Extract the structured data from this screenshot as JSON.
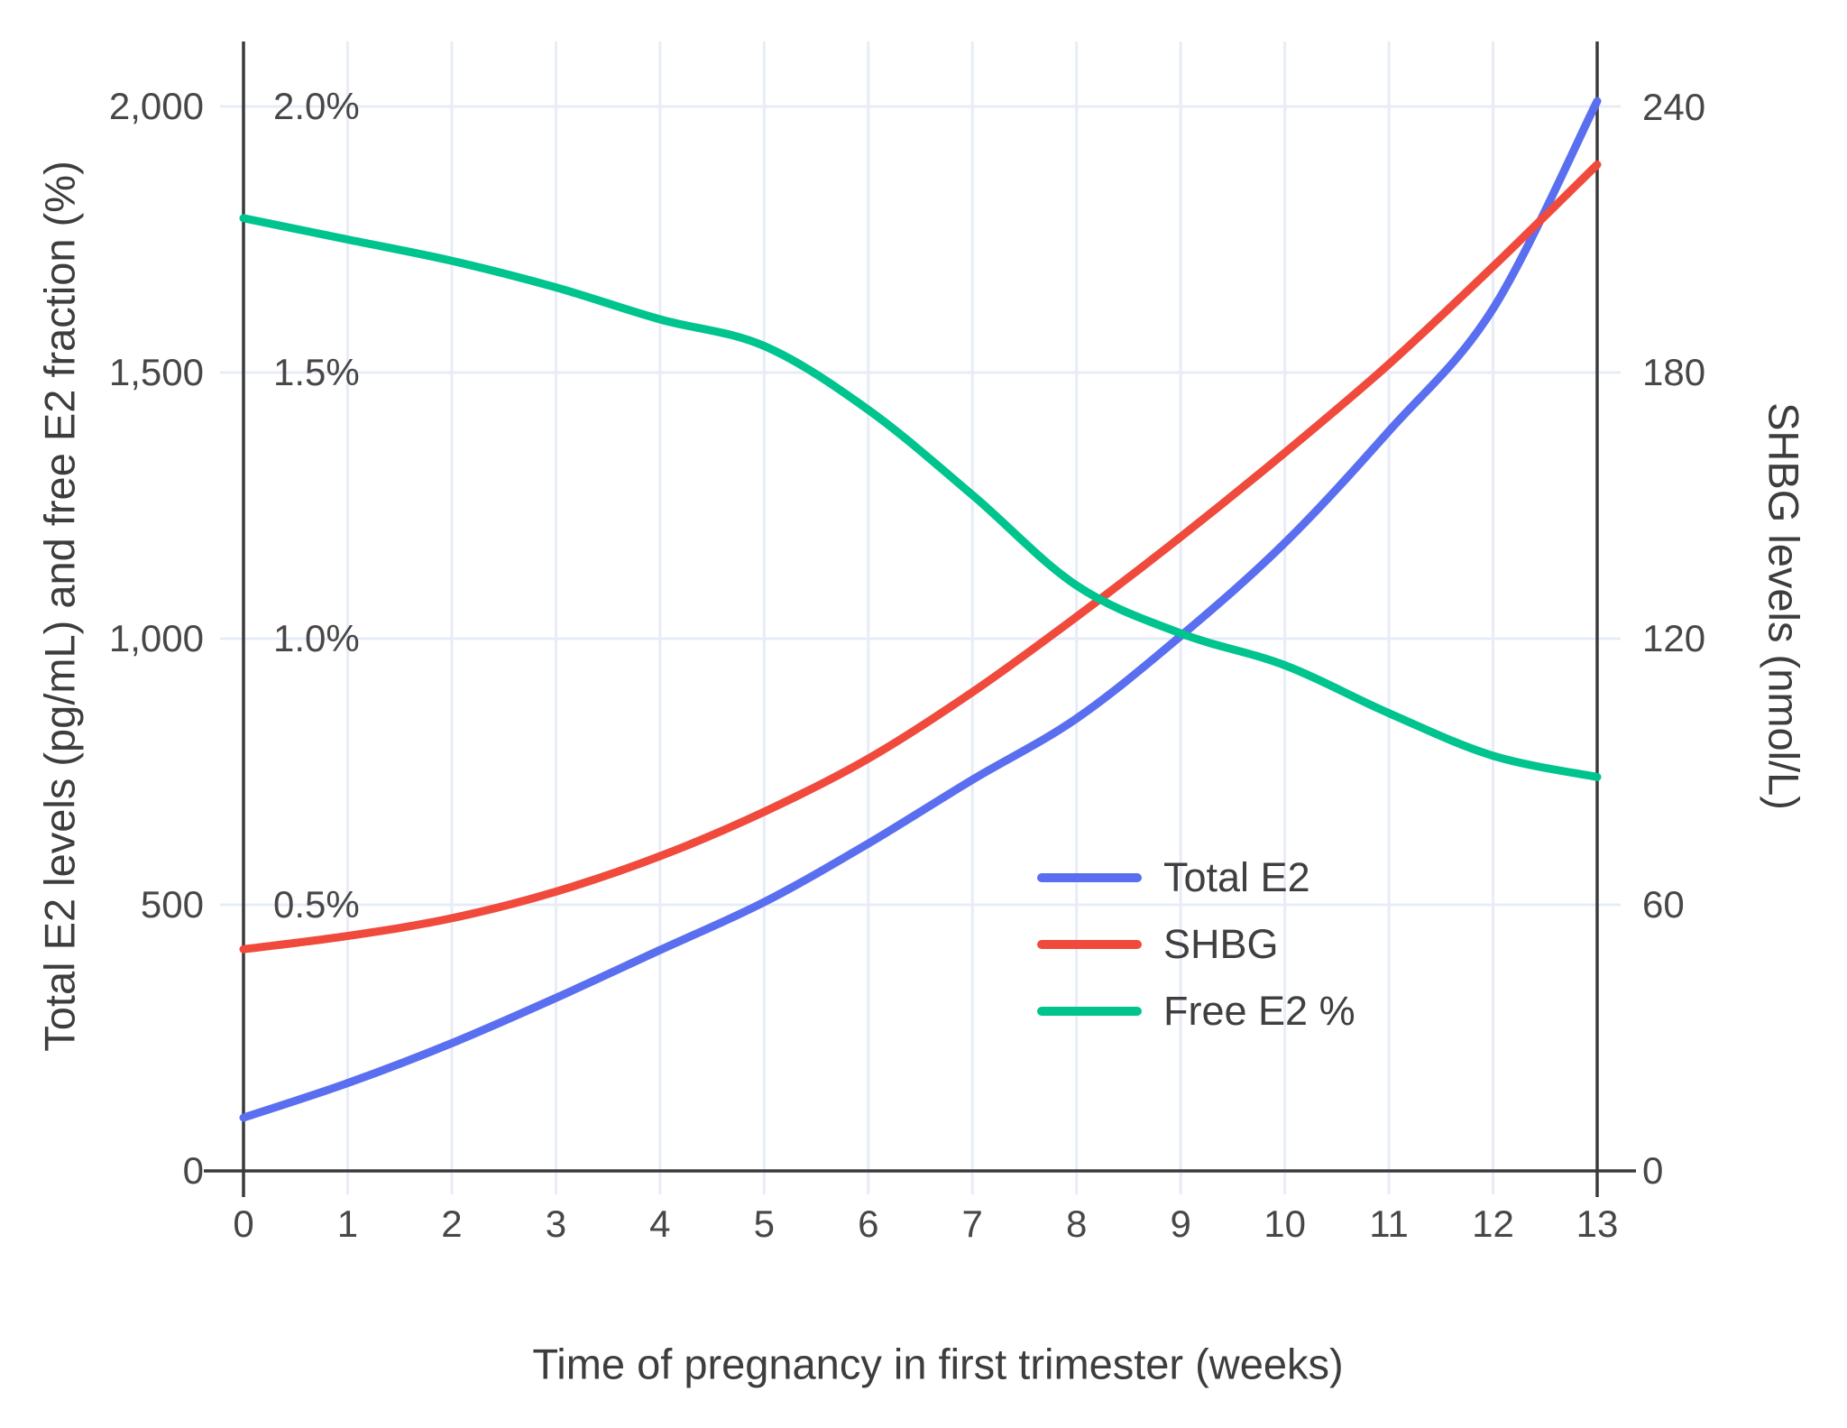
{
  "chart_data": {
    "type": "line",
    "title": "",
    "xlabel": "Time of pregnancy in first trimester (weeks)",
    "ylabel_left": "Total E2 levels (pg/mL) and free E2 fraction (%)",
    "ylabel_right": "SHBG levels (nmol/L)",
    "x": [
      0,
      1,
      2,
      3,
      4,
      5,
      6,
      7,
      8,
      9,
      10,
      11,
      12,
      13
    ],
    "x_tick_labels": [
      "0",
      "1",
      "2",
      "3",
      "4",
      "5",
      "6",
      "7",
      "8",
      "9",
      "10",
      "11",
      "12",
      "13"
    ],
    "left_axis": {
      "range": [
        0,
        2000
      ],
      "ticks": [
        {
          "v": 0,
          "label": "0"
        },
        {
          "v": 500,
          "label": "500"
        },
        {
          "v": 1000,
          "label": "1,000"
        },
        {
          "v": 1500,
          "label": "1,500"
        },
        {
          "v": 2000,
          "label": "2,000"
        }
      ]
    },
    "left_inner_percent_labels": [
      {
        "v": 500,
        "label": "0.5%"
      },
      {
        "v": 1000,
        "label": "1.0%"
      },
      {
        "v": 1500,
        "label": "1.5%"
      },
      {
        "v": 2000,
        "label": "2.0%"
      }
    ],
    "right_axis": {
      "range": [
        0,
        240
      ],
      "ticks": [
        {
          "v": 0,
          "label": "0"
        },
        {
          "v": 60,
          "label": "60"
        },
        {
          "v": 120,
          "label": "120"
        },
        {
          "v": 180,
          "label": "180"
        },
        {
          "v": 240,
          "label": "240"
        }
      ]
    },
    "percent_axis": {
      "range": [
        0,
        2.0
      ],
      "mapped_to_left_scale_factor": 1000
    },
    "series": [
      {
        "name": "Total E2",
        "axis": "left",
        "unit": "pg/mL",
        "color": "#5a6ff0",
        "values": [
          100,
          165,
          240,
          325,
          415,
          505,
          615,
          735,
          850,
          1005,
          1180,
          1390,
          1620,
          2010
        ]
      },
      {
        "name": "SHBG",
        "axis": "right",
        "unit": "nmol/L",
        "color": "#f04a3c",
        "values": [
          50,
          53,
          57,
          63,
          71,
          81,
          93,
          108,
          125,
          143,
          162,
          182,
          204,
          227
        ]
      },
      {
        "name": "Free E2 %",
        "axis": "percent",
        "unit": "%",
        "color": "#00c48e",
        "values": [
          1.79,
          1.75,
          1.71,
          1.66,
          1.6,
          1.55,
          1.43,
          1.27,
          1.1,
          1.01,
          0.95,
          0.86,
          0.78,
          0.74
        ]
      }
    ],
    "grid": true,
    "legend_position": "inside-center-right",
    "colors": {
      "grid": "#e7ecf7",
      "axis": "#3a3a3a",
      "tick_text": "#474747",
      "title_text": "#3d3d3d",
      "background": "#ffffff"
    }
  }
}
